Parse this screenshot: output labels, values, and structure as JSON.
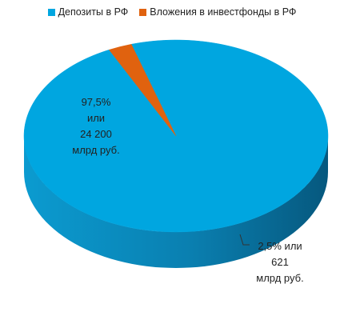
{
  "chart_data": {
    "type": "pie",
    "title": "",
    "legend_position": "top",
    "series": [
      {
        "name": "Депозиты в РФ",
        "value": 97.5,
        "color": "#00A6E0",
        "side_color": "#0A7FB0",
        "label_lines": [
          "97,5%",
          "или",
          "24 200",
          "млрд руб."
        ]
      },
      {
        "name": "Вложения в инвестфонды в РФ",
        "value": 2.5,
        "color": "#E0620F",
        "side_color": "#7A3210",
        "label_lines": [
          "2,5% или",
          "621",
          "млрд руб."
        ]
      }
    ]
  }
}
